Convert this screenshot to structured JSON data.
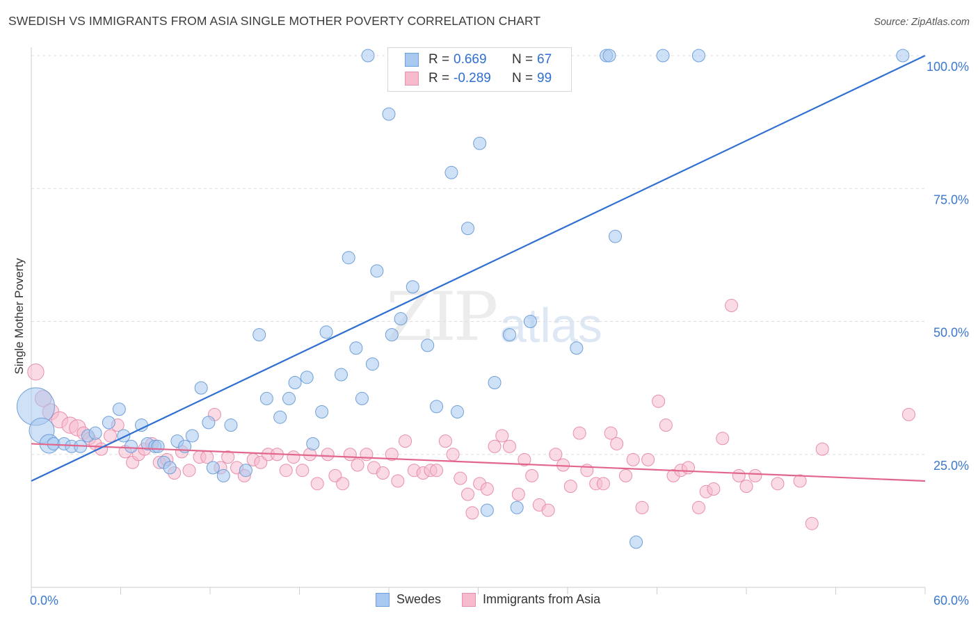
{
  "title": "SWEDISH VS IMMIGRANTS FROM ASIA SINGLE MOTHER POVERTY CORRELATION CHART",
  "source": "Source: ZipAtlas.com",
  "watermark": {
    "zip": "ZIP",
    "atlas": "atlas"
  },
  "colors": {
    "swedes_fill": "#a8c8f0",
    "swedes_stroke": "#6f9fd8",
    "swedes_line": "#2e6fd1",
    "asia_fill": "#f6bccd",
    "asia_stroke": "#e88fab",
    "asia_line": "#e2668c",
    "grid": "#dddddd",
    "tick_label": "#3a78d0"
  },
  "legend": {
    "rows": [
      {
        "r_label": "R =",
        "r_value": "0.669",
        "n_label": "N =",
        "n_value": "67"
      },
      {
        "r_label": "R =",
        "r_value": "-0.289",
        "n_label": "N =",
        "n_value": "99"
      }
    ]
  },
  "bottom_legend": {
    "swedes": "Swedes",
    "asia": "Immigrants from Asia"
  },
  "chart_data": {
    "type": "scatter",
    "title": "SWEDISH VS IMMIGRANTS FROM ASIA SINGLE MOTHER POVERTY CORRELATION CHART",
    "xlabel": "",
    "ylabel": "Single Mother Poverty",
    "xlim": [
      0,
      60
    ],
    "ylim": [
      0,
      100
    ],
    "x_tick_labels": [
      "0.0%",
      "60.0%"
    ],
    "y_tick_labels": [
      "25.0%",
      "50.0%",
      "75.0%",
      "100.0%"
    ],
    "y_ticks": [
      25,
      50,
      75,
      100
    ],
    "grid": true,
    "legend_position": "top-center",
    "series": [
      {
        "name": "Swedes",
        "r": 0.669,
        "n": 67,
        "trend": {
          "x": [
            0,
            60
          ],
          "y": [
            20,
            100
          ]
        },
        "points": [
          [
            0.3,
            34,
            3
          ],
          [
            0.7,
            29.5,
            2
          ],
          [
            1.2,
            27,
            1.5
          ],
          [
            1.5,
            27,
            1
          ],
          [
            2.2,
            27,
            1
          ],
          [
            2.7,
            26.5,
            1
          ],
          [
            3.3,
            26.5,
            1
          ],
          [
            3.8,
            28.5,
            1
          ],
          [
            4.3,
            29,
            1
          ],
          [
            5.2,
            31,
            1
          ],
          [
            5.9,
            33.5,
            1
          ],
          [
            6.2,
            28.5,
            1
          ],
          [
            6.7,
            26.5,
            1
          ],
          [
            7.4,
            30.5,
            1
          ],
          [
            7.8,
            27,
            1
          ],
          [
            8.3,
            26.5,
            1
          ],
          [
            8.5,
            26.5,
            1
          ],
          [
            8.9,
            23.5,
            1
          ],
          [
            9.3,
            22.5,
            1
          ],
          [
            9.8,
            27.5,
            1
          ],
          [
            10.3,
            26.5,
            1
          ],
          [
            10.8,
            28.5,
            1
          ],
          [
            11.4,
            37.5,
            1
          ],
          [
            11.9,
            31,
            1
          ],
          [
            12.2,
            22.5,
            1
          ],
          [
            12.9,
            21,
            1
          ],
          [
            13.4,
            30.5,
            1
          ],
          [
            14.4,
            22,
            1
          ],
          [
            15.3,
            47.5,
            1
          ],
          [
            15.8,
            35.5,
            1
          ],
          [
            16.7,
            32,
            1
          ],
          [
            17.3,
            35.5,
            1
          ],
          [
            17.7,
            38.5,
            1
          ],
          [
            18.5,
            39.5,
            1
          ],
          [
            18.9,
            27,
            1
          ],
          [
            19.5,
            33,
            1
          ],
          [
            19.8,
            48,
            1
          ],
          [
            20.8,
            40,
            1
          ],
          [
            21.3,
            62,
            1
          ],
          [
            21.8,
            45,
            1
          ],
          [
            22.2,
            35.5,
            1
          ],
          [
            22.9,
            42,
            1
          ],
          [
            23.2,
            59.5,
            1
          ],
          [
            24.0,
            89,
            1
          ],
          [
            22.6,
            100,
            1
          ],
          [
            24.2,
            47.5,
            1
          ],
          [
            24.8,
            50.5,
            1
          ],
          [
            25.6,
            56.5,
            1
          ],
          [
            26.6,
            45.5,
            1
          ],
          [
            27.2,
            34,
            1
          ],
          [
            28.2,
            78,
            1
          ],
          [
            28.6,
            33,
            1
          ],
          [
            29.3,
            67.5,
            1
          ],
          [
            30.1,
            83.5,
            1
          ],
          [
            30.6,
            14.5,
            1
          ],
          [
            31.1,
            38.5,
            1
          ],
          [
            32.1,
            47.5,
            1
          ],
          [
            32.6,
            15,
            1
          ],
          [
            33.5,
            50,
            1
          ],
          [
            36.6,
            45,
            1
          ],
          [
            38.6,
            100,
            1
          ],
          [
            38.8,
            100,
            1
          ],
          [
            39.2,
            66,
            1
          ],
          [
            40.6,
            8.5,
            1
          ],
          [
            42.4,
            100,
            1
          ],
          [
            44.8,
            100,
            1
          ],
          [
            58.5,
            100,
            1
          ]
        ]
      },
      {
        "name": "Immigrants from Asia",
        "r": -0.289,
        "n": 99,
        "trend": {
          "x": [
            0,
            60
          ],
          "y": [
            27,
            20
          ]
        },
        "points": [
          [
            0.3,
            40.5,
            1.3
          ],
          [
            0.8,
            35.5,
            1.3
          ],
          [
            1.3,
            33,
            1.3
          ],
          [
            1.9,
            31.5,
            1.3
          ],
          [
            2.6,
            30.5,
            1.3
          ],
          [
            3.1,
            30,
            1.3
          ],
          [
            3.5,
            29,
            1
          ],
          [
            3.9,
            28,
            1
          ],
          [
            4.3,
            27,
            1
          ],
          [
            4.7,
            26,
            1
          ],
          [
            5.3,
            28.5,
            1
          ],
          [
            5.8,
            30.5,
            1
          ],
          [
            6.3,
            25.5,
            1
          ],
          [
            6.8,
            23.5,
            1
          ],
          [
            7.2,
            25,
            1
          ],
          [
            7.6,
            26,
            1
          ],
          [
            8.1,
            27,
            1
          ],
          [
            8.6,
            23.5,
            1
          ],
          [
            9.1,
            24,
            1
          ],
          [
            9.6,
            21.5,
            1
          ],
          [
            10.1,
            25.5,
            1
          ],
          [
            10.6,
            22,
            1
          ],
          [
            11.3,
            24.5,
            1
          ],
          [
            11.8,
            24.5,
            1
          ],
          [
            12.3,
            32.5,
            1
          ],
          [
            12.7,
            22.5,
            1
          ],
          [
            13.2,
            24.5,
            1
          ],
          [
            13.8,
            22.5,
            1
          ],
          [
            14.3,
            21,
            1
          ],
          [
            14.9,
            24,
            1
          ],
          [
            15.4,
            23.5,
            1
          ],
          [
            15.9,
            25,
            1
          ],
          [
            16.5,
            25,
            1
          ],
          [
            17.1,
            22,
            1
          ],
          [
            17.6,
            24.5,
            1
          ],
          [
            18.2,
            22,
            1
          ],
          [
            18.7,
            25,
            1
          ],
          [
            19.2,
            19.5,
            1
          ],
          [
            19.9,
            25,
            1
          ],
          [
            20.4,
            21,
            1
          ],
          [
            20.9,
            19.5,
            1
          ],
          [
            21.4,
            25,
            1
          ],
          [
            21.9,
            23,
            1
          ],
          [
            22.5,
            25,
            1
          ],
          [
            23.0,
            22.5,
            1
          ],
          [
            23.6,
            21.5,
            1
          ],
          [
            24.2,
            25,
            1
          ],
          [
            24.6,
            20,
            1
          ],
          [
            25.1,
            27.5,
            1
          ],
          [
            25.7,
            22,
            1
          ],
          [
            26.3,
            21.5,
            1
          ],
          [
            26.8,
            22,
            1
          ],
          [
            27.2,
            22,
            1
          ],
          [
            27.8,
            27.5,
            1
          ],
          [
            28.3,
            25,
            1
          ],
          [
            28.8,
            20.5,
            1
          ],
          [
            29.3,
            17.5,
            1
          ],
          [
            29.6,
            14,
            1
          ],
          [
            30.1,
            19.5,
            1
          ],
          [
            30.6,
            18.5,
            1
          ],
          [
            31.1,
            26.5,
            1
          ],
          [
            31.6,
            28.5,
            1
          ],
          [
            32.1,
            26.5,
            1
          ],
          [
            32.7,
            17.5,
            1
          ],
          [
            33.1,
            24,
            1
          ],
          [
            33.6,
            21,
            1
          ],
          [
            34.1,
            15.5,
            1
          ],
          [
            34.7,
            14.5,
            1
          ],
          [
            35.2,
            25,
            1
          ],
          [
            35.7,
            23,
            1
          ],
          [
            36.2,
            19,
            1
          ],
          [
            36.8,
            29,
            1
          ],
          [
            37.3,
            22,
            1
          ],
          [
            37.9,
            19.5,
            1
          ],
          [
            38.4,
            19.5,
            1
          ],
          [
            38.9,
            29,
            1
          ],
          [
            39.3,
            27,
            1
          ],
          [
            39.9,
            21,
            1
          ],
          [
            40.4,
            24,
            1
          ],
          [
            41.0,
            15,
            1
          ],
          [
            41.4,
            24,
            1
          ],
          [
            42.1,
            35,
            1
          ],
          [
            42.6,
            30.5,
            1
          ],
          [
            43.1,
            21,
            1
          ],
          [
            43.6,
            22,
            1
          ],
          [
            44.1,
            22.5,
            1
          ],
          [
            44.8,
            15,
            1
          ],
          [
            45.3,
            18,
            1
          ],
          [
            45.8,
            18.5,
            1
          ],
          [
            46.4,
            28,
            1
          ],
          [
            47.0,
            53,
            1
          ],
          [
            47.5,
            21,
            1
          ],
          [
            48.0,
            19,
            1
          ],
          [
            48.6,
            21,
            1
          ],
          [
            50.1,
            19.5,
            1
          ],
          [
            51.6,
            20,
            1
          ],
          [
            52.4,
            12,
            1
          ],
          [
            53.1,
            26,
            1
          ],
          [
            58.9,
            32.5,
            1
          ]
        ]
      }
    ]
  }
}
